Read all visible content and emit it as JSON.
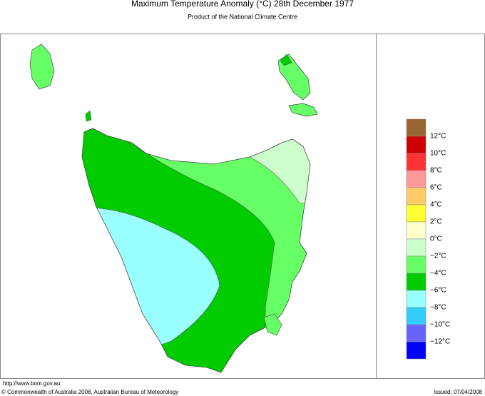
{
  "header": {
    "title": "Maximum Temperature Anomaly (°C)  28th December 1977",
    "subtitle": "Product of the National Climate Centre"
  },
  "legend": {
    "colors": [
      "#996633",
      "#cc0000",
      "#ff3333",
      "#ff9999",
      "#ffcc66",
      "#ffff33",
      "#ffffcc",
      "#ccffcc",
      "#66ff66",
      "#00cc00",
      "#99ffff",
      "#33ccff",
      "#6666ff",
      "#0000ff"
    ],
    "labels": [
      "12°C",
      "10°C",
      "8°C",
      "6°C",
      "4°C",
      "2°C",
      "0°C",
      "−2°C",
      "−4°C",
      "−6°C",
      "−8°C",
      "−10°C",
      "−12°C"
    ]
  },
  "footer": {
    "url": "http://www.bom.gov.au",
    "copyright": "© Commonwealth of Australia 2008, Australian Bureau of Meteorology",
    "issued": "Issued: 07/04/2008"
  }
}
